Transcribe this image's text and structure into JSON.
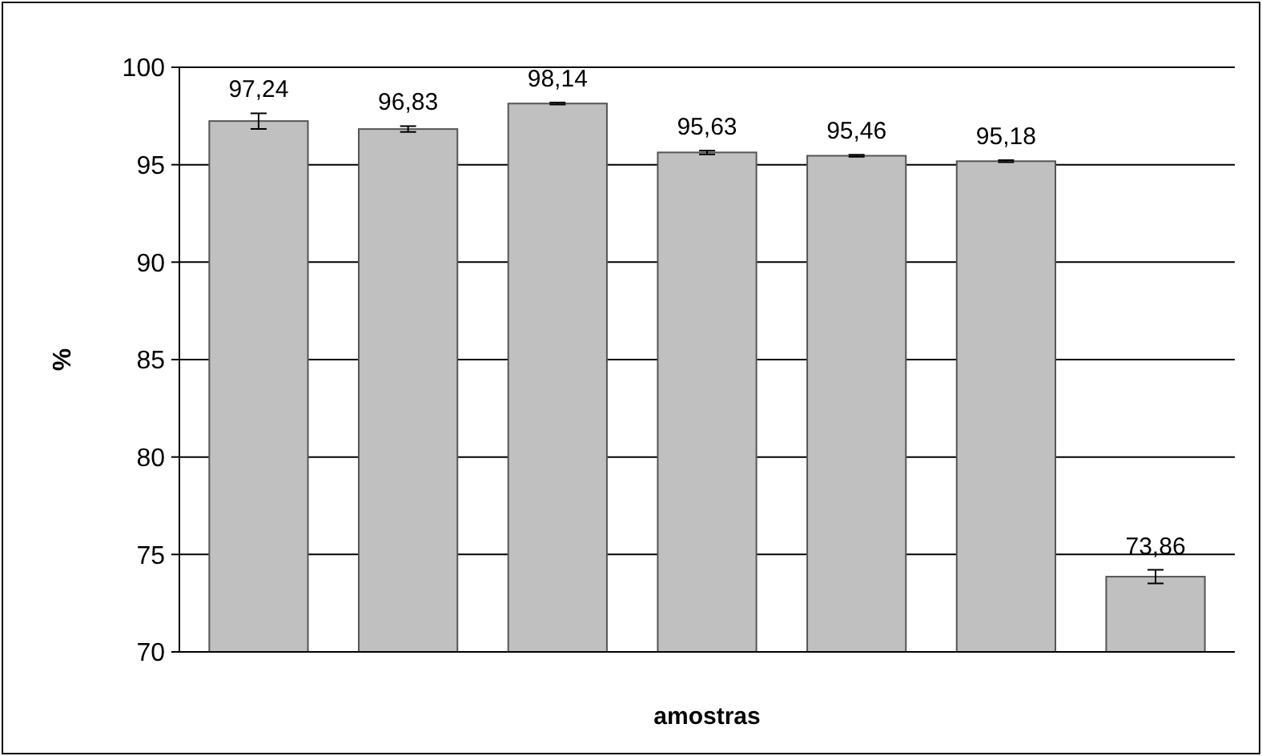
{
  "chart_data": {
    "type": "bar",
    "xlabel": "amostras",
    "ylabel": "%",
    "categories": [
      null,
      null,
      null,
      null,
      null,
      null,
      null
    ],
    "values": [
      97.24,
      96.83,
      98.14,
      95.63,
      95.46,
      95.18,
      73.86
    ],
    "errors": [
      0.4,
      0.15,
      0.05,
      0.1,
      0.05,
      0.05,
      0.35
    ],
    "value_labels": [
      "97,24",
      "96,83",
      "98,14",
      "95,63",
      "95,46",
      "95,18",
      "73,86"
    ],
    "color": "#c0c0c0",
    "ylim": [
      70,
      100
    ],
    "yticks": [
      70,
      75,
      80,
      85,
      90,
      95,
      100
    ],
    "grid": "y"
  }
}
